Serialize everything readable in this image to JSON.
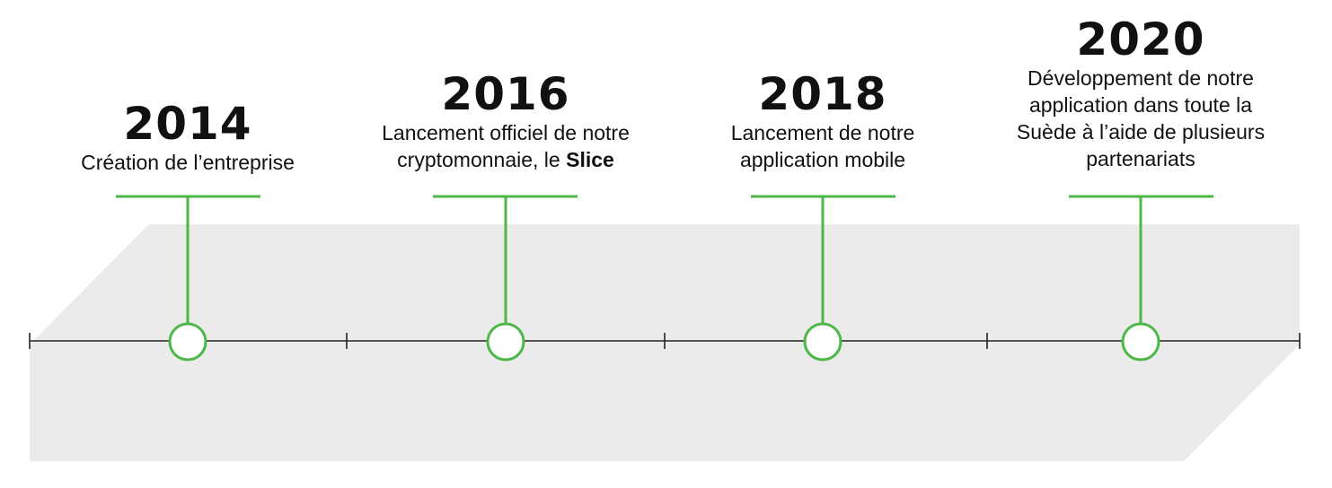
{
  "colors": {
    "accent": "#4db848",
    "band": "#ebebeb",
    "axis": "#222222"
  },
  "milestones": [
    {
      "year": "2014",
      "desc": "Création de l’entreprise"
    },
    {
      "year": "2016",
      "desc_line1": "Lancement officiel de notre",
      "desc_line2_prefix": "cryptomonnaie, le ",
      "desc_line2_bold": "Slice"
    },
    {
      "year": "2018",
      "desc_line1": "Lancement de notre",
      "desc_line2": "application mobile"
    },
    {
      "year": "2020",
      "desc_line1": "Développement de notre",
      "desc_line2": "application dans toute la",
      "desc_line3": "Suède à l’aide de plusieurs",
      "desc_line4": "partenariats"
    }
  ]
}
